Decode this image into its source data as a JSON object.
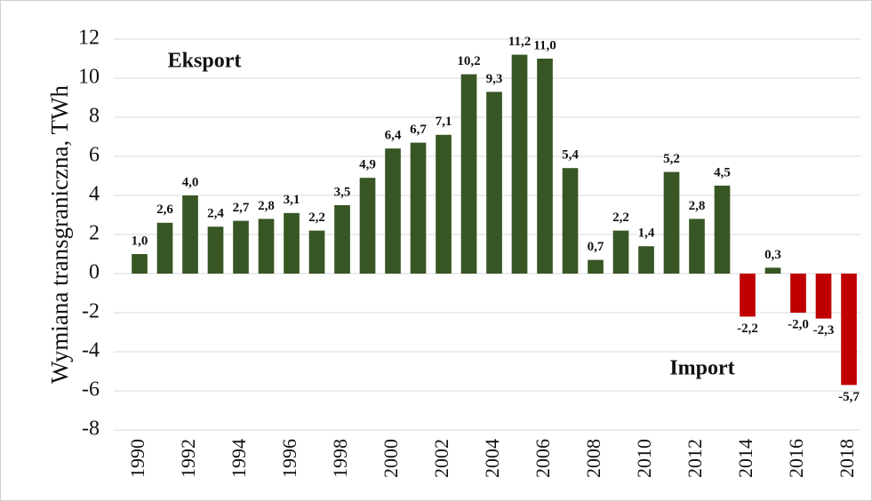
{
  "chart_data": {
    "type": "bar",
    "ylabel": "Wymiana transgraniczna,  TWh",
    "annotations": [
      "Eksport",
      "Import"
    ],
    "categories": [
      "1990",
      null,
      "1992",
      null,
      "1994",
      null,
      "1996",
      null,
      "1998",
      null,
      "2000",
      null,
      "2002",
      null,
      "2004",
      null,
      "2006",
      null,
      "2008",
      null,
      "2010",
      null,
      "2012",
      null,
      "2014",
      null,
      "2016",
      null,
      "2018"
    ],
    "values": [
      1.0,
      2.6,
      4.0,
      2.4,
      2.7,
      2.8,
      3.1,
      2.2,
      3.5,
      4.9,
      6.4,
      6.7,
      7.1,
      10.2,
      9.3,
      11.2,
      11.0,
      5.4,
      0.7,
      2.2,
      1.4,
      5.2,
      2.8,
      4.5,
      -2.2,
      0.3,
      -2.0,
      -2.3,
      -5.7
    ],
    "value_labels": [
      "1,0",
      "2,6",
      "4,0",
      "2,4",
      "2,7",
      "2,8",
      "3,1",
      "2,2",
      "3,5",
      "4,9",
      "6,4",
      "6,7",
      "7,1",
      "10,2",
      "9,3",
      "11,2",
      "11,0",
      "5,4",
      "0,7",
      "2,2",
      "1,4",
      "5,2",
      "2,8",
      "4,5",
      "-2,2",
      "0,3",
      "-2,0",
      "-2,3",
      "-5,7"
    ],
    "positive_color": "#375623",
    "negative_color": "#c00000",
    "ylim": [
      -8,
      12
    ],
    "yticks": [
      -8,
      -6,
      -4,
      -2,
      0,
      2,
      4,
      6,
      8,
      10,
      12
    ],
    "grid": true
  }
}
